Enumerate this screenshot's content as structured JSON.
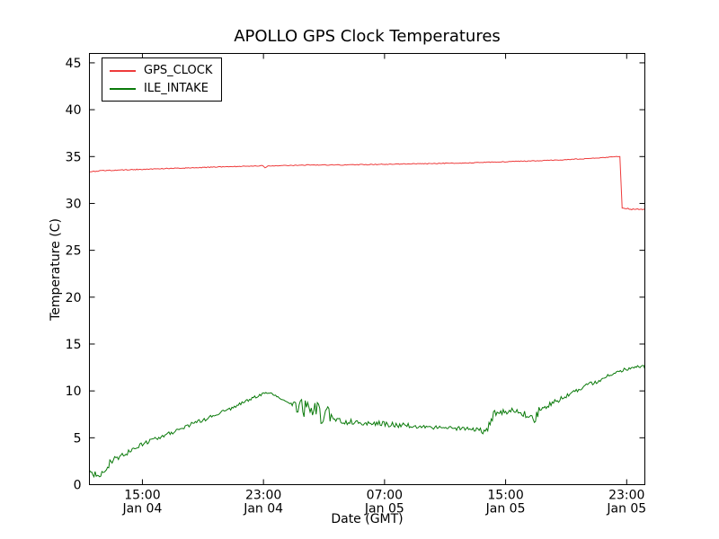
{
  "chart_data": {
    "type": "line",
    "title": "APOLLO GPS Clock Temperatures",
    "xlabel": "Date (GMT)",
    "ylabel": "Temperature (C)",
    "ylim": [
      0,
      46
    ],
    "xlim_hours": [
      11.5,
      48.2
    ],
    "x_unit": "hours since Jan 04 00:00 GMT",
    "grid": false,
    "legend_position": "upper left",
    "yticks": [
      0,
      5,
      10,
      15,
      20,
      25,
      30,
      35,
      40,
      45
    ],
    "xticks": [
      {
        "hour": 15,
        "time": "15:00",
        "date": "Jan 04"
      },
      {
        "hour": 23,
        "time": "23:00",
        "date": "Jan 04"
      },
      {
        "hour": 31,
        "time": "07:00",
        "date": "Jan 05"
      },
      {
        "hour": 39,
        "time": "15:00",
        "date": "Jan 05"
      },
      {
        "hour": 47,
        "time": "23:00",
        "date": "Jan 05"
      }
    ],
    "series": [
      {
        "name": "GPS_CLOCK",
        "color": "#ee3b3b",
        "points_format": "[hour, temperature_C, noise_amplitude_C]",
        "points": [
          [
            11.5,
            33.4,
            0.05
          ],
          [
            12.5,
            33.5,
            0.05
          ],
          [
            14.0,
            33.6,
            0.05
          ],
          [
            15.5,
            33.65,
            0.04
          ],
          [
            17.0,
            33.75,
            0.04
          ],
          [
            18.5,
            33.8,
            0.04
          ],
          [
            20.0,
            33.9,
            0.04
          ],
          [
            21.5,
            33.95,
            0.04
          ],
          [
            22.7,
            34.0,
            0.03
          ],
          [
            22.95,
            34.05,
            0.02
          ],
          [
            23.1,
            33.8,
            0.02
          ],
          [
            23.3,
            34.0,
            0.03
          ],
          [
            24.5,
            34.05,
            0.04
          ],
          [
            26.0,
            34.1,
            0.04
          ],
          [
            28.0,
            34.1,
            0.04
          ],
          [
            30.0,
            34.15,
            0.04
          ],
          [
            32.0,
            34.2,
            0.04
          ],
          [
            34.0,
            34.25,
            0.04
          ],
          [
            36.0,
            34.3,
            0.04
          ],
          [
            38.0,
            34.4,
            0.04
          ],
          [
            40.0,
            34.5,
            0.04
          ],
          [
            42.0,
            34.6,
            0.04
          ],
          [
            44.0,
            34.75,
            0.04
          ],
          [
            45.5,
            34.9,
            0.04
          ],
          [
            46.4,
            35.0,
            0.03
          ],
          [
            46.55,
            35.0,
            0.0
          ],
          [
            46.7,
            29.5,
            0.0
          ],
          [
            47.0,
            29.45,
            0.06
          ],
          [
            47.5,
            29.35,
            0.06
          ],
          [
            48.2,
            29.4,
            0.06
          ]
        ]
      },
      {
        "name": "ILE_INTAKE",
        "color": "#0a7a0a",
        "points_format": "[hour, temperature_C, noise_amplitude_C]",
        "points": [
          [
            11.5,
            1.7,
            0.6
          ],
          [
            11.8,
            1.3,
            0.5
          ],
          [
            12.1,
            1.1,
            0.3
          ],
          [
            12.4,
            1.2,
            0.25
          ],
          [
            12.7,
            2.1,
            0.5
          ],
          [
            13.0,
            2.6,
            0.3
          ],
          [
            13.5,
            3.0,
            0.25
          ],
          [
            14.0,
            3.4,
            0.25
          ],
          [
            14.5,
            3.9,
            0.25
          ],
          [
            15.0,
            4.3,
            0.22
          ],
          [
            15.5,
            4.7,
            0.22
          ],
          [
            16.0,
            5.0,
            0.22
          ],
          [
            16.5,
            5.3,
            0.22
          ],
          [
            17.0,
            5.6,
            0.22
          ],
          [
            17.5,
            6.0,
            0.2
          ],
          [
            18.0,
            6.3,
            0.2
          ],
          [
            18.5,
            6.6,
            0.2
          ],
          [
            19.0,
            6.9,
            0.2
          ],
          [
            19.5,
            7.2,
            0.2
          ],
          [
            20.0,
            7.6,
            0.18
          ],
          [
            20.5,
            7.9,
            0.18
          ],
          [
            21.0,
            8.2,
            0.18
          ],
          [
            21.5,
            8.6,
            0.18
          ],
          [
            22.0,
            9.0,
            0.15
          ],
          [
            22.5,
            9.4,
            0.15
          ],
          [
            23.0,
            9.7,
            0.12
          ],
          [
            23.4,
            9.8,
            0.1
          ],
          [
            23.8,
            9.5,
            0.06
          ],
          [
            24.2,
            9.1,
            0.05
          ],
          [
            24.6,
            8.8,
            0.05
          ],
          [
            24.9,
            8.5,
            0.3
          ],
          [
            25.2,
            8.4,
            0.8
          ],
          [
            25.6,
            8.2,
            1.0
          ],
          [
            26.0,
            8.1,
            1.0
          ],
          [
            26.4,
            8.4,
            0.9
          ],
          [
            26.8,
            7.3,
            0.9
          ],
          [
            27.1,
            7.9,
            0.9
          ],
          [
            27.4,
            7.2,
            0.7
          ],
          [
            27.7,
            6.8,
            0.45
          ],
          [
            28.2,
            6.9,
            0.4
          ],
          [
            28.7,
            6.7,
            0.35
          ],
          [
            29.2,
            6.6,
            0.3
          ],
          [
            30.0,
            6.6,
            0.3
          ],
          [
            30.8,
            6.5,
            0.28
          ],
          [
            31.6,
            6.4,
            0.28
          ],
          [
            32.4,
            6.3,
            0.26
          ],
          [
            33.2,
            6.2,
            0.24
          ],
          [
            34.0,
            6.1,
            0.22
          ],
          [
            34.8,
            6.1,
            0.2
          ],
          [
            35.6,
            6.0,
            0.2
          ],
          [
            36.4,
            6.0,
            0.2
          ],
          [
            37.0,
            5.9,
            0.22
          ],
          [
            37.5,
            5.7,
            0.3
          ],
          [
            37.9,
            6.3,
            0.5
          ],
          [
            38.2,
            7.5,
            0.45
          ],
          [
            38.6,
            7.8,
            0.4
          ],
          [
            39.0,
            7.8,
            0.35
          ],
          [
            39.5,
            7.9,
            0.32
          ],
          [
            40.0,
            7.8,
            0.4
          ],
          [
            40.5,
            7.0,
            0.6
          ],
          [
            40.9,
            6.8,
            0.5
          ],
          [
            41.2,
            7.9,
            0.45
          ],
          [
            41.6,
            8.3,
            0.35
          ],
          [
            42.0,
            8.6,
            0.3
          ],
          [
            42.5,
            9.0,
            0.3
          ],
          [
            43.0,
            9.5,
            0.28
          ],
          [
            43.5,
            9.9,
            0.28
          ],
          [
            44.0,
            10.3,
            0.25
          ],
          [
            44.5,
            10.7,
            0.25
          ],
          [
            45.0,
            11.0,
            0.25
          ],
          [
            45.5,
            11.4,
            0.22
          ],
          [
            46.0,
            11.8,
            0.22
          ],
          [
            46.5,
            12.1,
            0.2
          ],
          [
            47.0,
            12.3,
            0.2
          ],
          [
            47.4,
            12.5,
            0.2
          ],
          [
            47.8,
            12.6,
            0.22
          ],
          [
            48.2,
            12.5,
            0.2
          ]
        ]
      }
    ]
  }
}
